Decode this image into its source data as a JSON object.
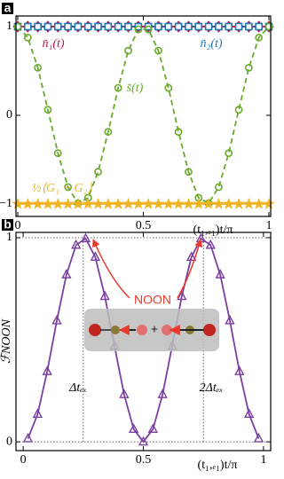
{
  "chart_data": [
    {
      "type": "line",
      "panel": "a",
      "x": [
        0,
        0.04,
        0.08,
        0.12,
        0.16,
        0.2,
        0.24,
        0.28,
        0.32,
        0.36,
        0.4,
        0.44,
        0.48,
        0.52,
        0.56,
        0.6,
        0.64,
        0.68,
        0.72,
        0.76,
        0.8,
        0.84,
        0.88,
        0.92,
        0.96,
        1
      ],
      "series": [
        {
          "name": "n̄₁(t)",
          "color": "#b5174b",
          "marker": "diamond",
          "dash": false,
          "values": [
            1,
            1,
            1,
            1,
            1,
            1,
            1,
            1,
            1,
            1,
            1,
            1,
            1,
            1,
            1,
            1,
            1,
            1,
            1,
            1,
            1,
            1,
            1,
            1,
            1,
            1
          ]
        },
        {
          "name": "n̄₂(t)",
          "color": "#1f77b4",
          "marker": "square",
          "dash": false,
          "values": [
            1,
            1,
            1,
            1,
            1,
            1,
            1,
            1,
            1,
            1,
            1,
            1,
            1,
            1,
            1,
            1,
            1,
            1,
            1,
            1,
            1,
            1,
            1,
            1,
            1,
            1
          ]
        },
        {
          "name": "s̄(t)",
          "color": "#6aaa2a",
          "marker": "circle",
          "dash": true,
          "values": [
            1,
            0.876,
            0.536,
            0.063,
            -0.426,
            -0.809,
            -0.992,
            -0.93,
            -0.637,
            -0.187,
            0.309,
            0.729,
            0.969,
            0.969,
            0.729,
            0.309,
            -0.187,
            -0.637,
            -0.93,
            -0.992,
            -0.809,
            -0.426,
            0.063,
            0.536,
            0.876,
            1
          ]
        },
        {
          "name": "½⟨G₁ + G₂⟩",
          "color": "#f0b323",
          "marker": "star",
          "dash": false,
          "values": [
            -1,
            -1,
            -1,
            -1,
            -1,
            -1,
            -1,
            -1,
            -1,
            -1,
            -1,
            -1,
            -1,
            -1,
            -1,
            -1,
            -1,
            -1,
            -1,
            -1,
            -1,
            -1,
            -1,
            -1,
            -1,
            -1
          ]
        }
      ],
      "xlim": [
        -0.007,
        1.007
      ],
      "ylim": [
        -1.14,
        1.12
      ],
      "xticks": [
        0,
        0.5,
        1
      ],
      "yticks": [
        {
          "value": -1,
          "label": "−1"
        },
        0,
        1
      ],
      "xlabel": "(t₁,ₑ₁)t/π"
    },
    {
      "type": "line",
      "panel": "b",
      "x": [
        0.02,
        0.06,
        0.1,
        0.14,
        0.18,
        0.22,
        0.26,
        0.3,
        0.34,
        0.38,
        0.42,
        0.46,
        0.5,
        0.54,
        0.58,
        0.62,
        0.66,
        0.7,
        0.74,
        0.78,
        0.82,
        0.86,
        0.9,
        0.94,
        0.98
      ],
      "series": [
        {
          "name": "ℱNOON",
          "color": "#7b3fa0",
          "marker": "triangle",
          "dash": false,
          "values": [
            0.016,
            0.136,
            0.345,
            0.594,
            0.819,
            0.964,
            0.996,
            0.905,
            0.713,
            0.469,
            0.232,
            0.062,
            0,
            0.062,
            0.232,
            0.469,
            0.713,
            0.905,
            0.996,
            0.964,
            0.819,
            0.594,
            0.345,
            0.136,
            0.016
          ]
        }
      ],
      "xlim": [
        -0.03,
        1.03
      ],
      "ylim": [
        -0.043,
        1.026
      ],
      "xticks": [
        0,
        0.5,
        1
      ],
      "yticks": [
        0,
        1
      ],
      "xlabel": "(t₁,ₑ₁)t/π",
      "ylabel": "ℱNOON",
      "reference_lines": {
        "x": [
          0.25,
          0.75
        ],
        "y": [
          0,
          1
        ]
      },
      "annotations": [
        "NOON",
        "+",
        "Δtₑₓ",
        "2Δtₑₓ"
      ]
    }
  ]
}
